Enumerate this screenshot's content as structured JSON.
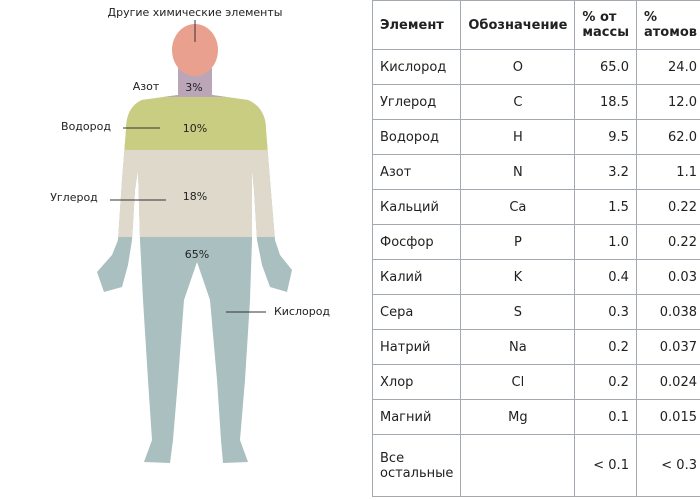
{
  "diagram": {
    "regions": [
      {
        "label": "Другие химические элементы"
      },
      {
        "label": "Азот",
        "percent": "3%"
      },
      {
        "label": "Водород",
        "percent": "10%"
      },
      {
        "label": "Углерод",
        "percent": "18%"
      },
      {
        "label": "Кислород",
        "percent": "65%"
      }
    ]
  },
  "table": {
    "header": [
      "Элемент",
      "Обозначение",
      "% от массы",
      "% атомов"
    ],
    "rows": [
      [
        "Кислород",
        "O",
        "65.0",
        "24.0"
      ],
      [
        "Углерод",
        "C",
        "18.5",
        "12.0"
      ],
      [
        "Водород",
        "H",
        "9.5",
        "62.0"
      ],
      [
        "Азот",
        "N",
        "3.2",
        "1.1"
      ],
      [
        "Кальций",
        "Ca",
        "1.5",
        "0.22"
      ],
      [
        "Фосфор",
        "P",
        "1.0",
        "0.22"
      ],
      [
        "Калий",
        "K",
        "0.4",
        "0.03"
      ],
      [
        "Сера",
        "S",
        "0.3",
        "0.038"
      ],
      [
        "Натрий",
        "Na",
        "0.2",
        "0.037"
      ],
      [
        "Хлор",
        "Cl",
        "0.2",
        "0.024"
      ],
      [
        "Магний",
        "Mg",
        "0.1",
        "0.015"
      ],
      [
        "Все остальные",
        "",
        "< 0.1",
        "< 0.3"
      ]
    ]
  }
}
